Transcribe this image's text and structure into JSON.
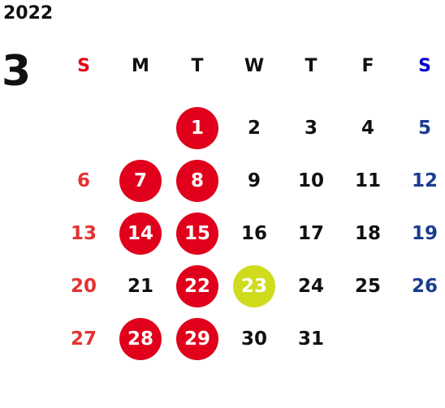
{
  "year": "2022",
  "month": "3",
  "weekdays": [
    "S",
    "M",
    "T",
    "W",
    "T",
    "F",
    "S"
  ],
  "colors": {
    "marked": "#e0001b",
    "today": "#cfdc1e",
    "sunday": "#e33232",
    "saturday": "#1a3d8f",
    "default": "#111111"
  },
  "weeks": [
    [
      {
        "day": "",
        "state": "empty"
      },
      {
        "day": "",
        "state": "empty"
      },
      {
        "day": "1",
        "state": "marked"
      },
      {
        "day": "2",
        "state": "normal"
      },
      {
        "day": "3",
        "state": "normal"
      },
      {
        "day": "4",
        "state": "normal"
      },
      {
        "day": "5",
        "state": "normal"
      }
    ],
    [
      {
        "day": "6",
        "state": "normal"
      },
      {
        "day": "7",
        "state": "marked"
      },
      {
        "day": "8",
        "state": "marked"
      },
      {
        "day": "9",
        "state": "normal"
      },
      {
        "day": "10",
        "state": "normal"
      },
      {
        "day": "11",
        "state": "normal"
      },
      {
        "day": "12",
        "state": "normal"
      }
    ],
    [
      {
        "day": "13",
        "state": "normal"
      },
      {
        "day": "14",
        "state": "marked"
      },
      {
        "day": "15",
        "state": "marked"
      },
      {
        "day": "16",
        "state": "normal"
      },
      {
        "day": "17",
        "state": "normal"
      },
      {
        "day": "18",
        "state": "normal"
      },
      {
        "day": "19",
        "state": "normal"
      }
    ],
    [
      {
        "day": "20",
        "state": "normal"
      },
      {
        "day": "21",
        "state": "normal"
      },
      {
        "day": "22",
        "state": "marked"
      },
      {
        "day": "23",
        "state": "today"
      },
      {
        "day": "24",
        "state": "normal"
      },
      {
        "day": "25",
        "state": "normal"
      },
      {
        "day": "26",
        "state": "normal"
      }
    ],
    [
      {
        "day": "27",
        "state": "normal"
      },
      {
        "day": "28",
        "state": "marked"
      },
      {
        "day": "29",
        "state": "marked"
      },
      {
        "day": "30",
        "state": "normal"
      },
      {
        "day": "31",
        "state": "normal"
      },
      {
        "day": "",
        "state": "empty"
      },
      {
        "day": "",
        "state": "empty"
      }
    ]
  ]
}
